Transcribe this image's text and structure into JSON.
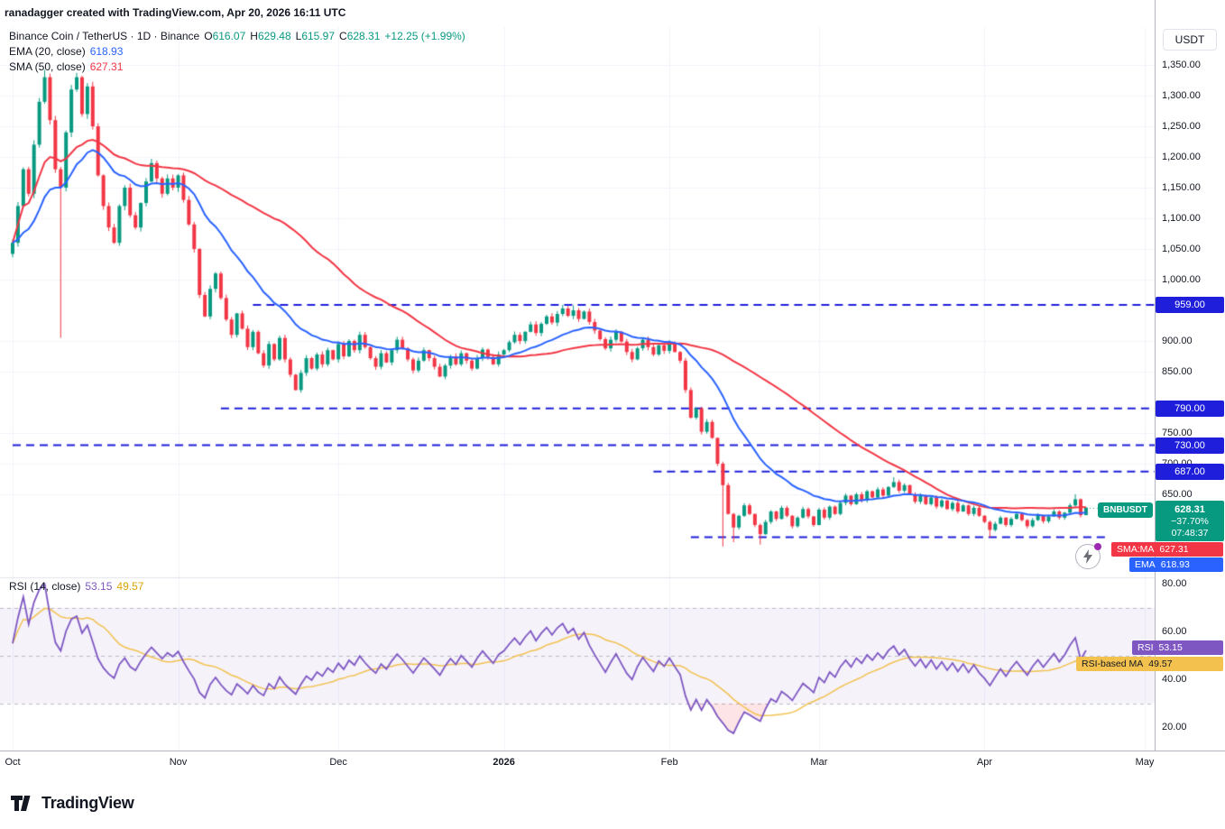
{
  "attribution": "ranadagger created with TradingView.com, Apr 20, 2026 16:11 UTC",
  "legend": {
    "title": "Binance Coin / TetherUS · 1D · Binance",
    "ohlc": {
      "o_key": "O",
      "o_val": "616.07",
      "h_key": "H",
      "h_val": "629.48",
      "l_key": "L",
      "l_val": "615.97",
      "c_key": "C",
      "c_val": "628.31"
    },
    "change": "+12.25 (+1.99%)",
    "ema_label": "EMA (20, close)",
    "ema_value": "618.93",
    "sma_label": "SMA (50, close)",
    "sma_value": "627.31",
    "rsi_label": "RSI (14, close)",
    "rsi_value": "53.15",
    "rsi_ma_value": "49.57"
  },
  "price_axis": {
    "currency": "USDT"
  },
  "badges": {
    "last": {
      "symbol": "BNBUSDT",
      "price": "628.31",
      "change": "−37.70%",
      "countdown": "07:48:37"
    },
    "sma": {
      "label": "SMA:MA",
      "value": "627.31"
    },
    "ema": {
      "label": "EMA",
      "value": "618.93"
    },
    "rsi": {
      "label": "RSI",
      "value": "53.15"
    },
    "rsi_ma": {
      "label": "RSI-based MA",
      "value": "49.57"
    }
  },
  "footer": {
    "brand": "TradingView"
  },
  "chart_data": {
    "type": "candlestick",
    "symbol": "BNBUSDT",
    "interval": "1D",
    "exchange": "Binance",
    "title": "Binance Coin / TetherUS",
    "price_range_hint": [
      515,
      1412
    ],
    "rsi_range_hint": [
      10,
      80
    ],
    "price_ticks": [
      1350,
      1300,
      1250,
      1200,
      1150,
      1100,
      1050,
      1000,
      900,
      850,
      750,
      700,
      650
    ],
    "rsi_ticks": [
      80,
      60,
      40,
      20
    ],
    "rsi_gridlines": [
      70,
      50,
      30
    ],
    "rsi_band": [
      30,
      70
    ],
    "x_months": [
      {
        "label": "Oct",
        "index": 0
      },
      {
        "label": "Nov",
        "index": 31
      },
      {
        "label": "Dec",
        "index": 61
      },
      {
        "label": "2026",
        "index": 92
      },
      {
        "label": "Feb",
        "index": 123
      },
      {
        "label": "Mar",
        "index": 151
      },
      {
        "label": "Apr",
        "index": 182
      },
      {
        "label": "May",
        "index": 212
      }
    ],
    "closes": [
      1060,
      1120,
      1180,
      1140,
      1220,
      1290,
      1330,
      1260,
      1180,
      1150,
      1240,
      1310,
      1330,
      1270,
      1315,
      1250,
      1170,
      1120,
      1085,
      1060,
      1120,
      1150,
      1105,
      1085,
      1125,
      1160,
      1190,
      1165,
      1140,
      1165,
      1150,
      1170,
      1130,
      1090,
      1050,
      975,
      940,
      985,
      1010,
      970,
      935,
      910,
      945,
      920,
      890,
      915,
      880,
      860,
      895,
      870,
      905,
      870,
      845,
      820,
      848,
      872,
      855,
      878,
      862,
      885,
      870,
      895,
      875,
      900,
      885,
      910,
      890,
      872,
      858,
      880,
      865,
      885,
      902,
      888,
      870,
      852,
      868,
      885,
      872,
      858,
      842,
      860,
      875,
      862,
      880,
      868,
      855,
      872,
      886,
      874,
      862,
      878,
      885,
      898,
      910,
      900,
      915,
      927,
      913,
      928,
      940,
      930,
      944,
      953,
      941,
      950,
      936,
      948,
      931,
      917,
      903,
      888,
      902,
      915,
      899,
      882,
      870,
      888,
      902,
      890,
      878,
      893,
      884,
      896,
      882,
      868,
      820,
      775,
      790,
      752,
      768,
      742,
      700,
      665,
      618,
      596,
      615,
      632,
      618,
      600,
      585,
      605,
      622,
      610,
      628,
      615,
      598,
      612,
      626,
      614,
      600,
      625,
      612,
      630,
      618,
      636,
      648,
      634,
      650,
      640,
      655,
      645,
      658,
      648,
      662,
      670,
      656,
      665,
      650,
      638,
      648,
      634,
      645,
      630,
      640,
      626,
      636,
      622,
      632,
      618,
      628,
      615,
      605,
      592,
      602,
      612,
      600,
      610,
      618,
      608,
      598,
      608,
      616,
      606,
      614,
      622,
      612,
      620,
      632,
      642,
      616,
      628.31
    ],
    "last_candle": {
      "open": 616.07,
      "high": 629.48,
      "low": 615.97,
      "close": 628.31
    },
    "last_price": 628.31,
    "wick_overrides": {
      "6": {
        "high": 1342
      },
      "9": {
        "low": 905
      },
      "103": {
        "high": 959
      },
      "105": {
        "high": 958
      },
      "133": {
        "low": 565
      },
      "135": {
        "low": 572
      },
      "140": {
        "low": 568
      },
      "165": {
        "high": 678
      },
      "183": {
        "low": 580
      },
      "199": {
        "high": 650
      }
    },
    "levels": [
      {
        "price": 959,
        "label": "959.00",
        "from_index": 45
      },
      {
        "price": 790,
        "label": "790.00",
        "from_index": 39
      },
      {
        "price": 730,
        "label": "730.00",
        "from_index": 0
      },
      {
        "price": 687,
        "label": "687.00",
        "from_index": 120
      },
      {
        "price": 580,
        "from_index": 127,
        "to_index": 205
      }
    ],
    "indicators": {
      "ema_period": 20,
      "sma_period": 50,
      "rsi_period": 14,
      "rsi_ma_period": 14,
      "ema_value": 618.93,
      "sma_value": 627.31,
      "rsi_value": 53.15,
      "rsi_ma_value": 49.57
    },
    "colors": {
      "up": "#089981",
      "down": "#F23645",
      "ema": "#2962FF",
      "sma": "#F23645",
      "level": "#1E1EDB",
      "last": "#089981",
      "rsi": "#7E57C2",
      "rsi_ma": "#F2C14E",
      "band_fill": "rgba(126,87,194,0.08)",
      "oversold_fill": "rgba(242,54,69,0.13)",
      "grid": "#F0F3FA",
      "rsi_grid": "#B9BCC5",
      "separator": "#E0E3EB"
    }
  }
}
